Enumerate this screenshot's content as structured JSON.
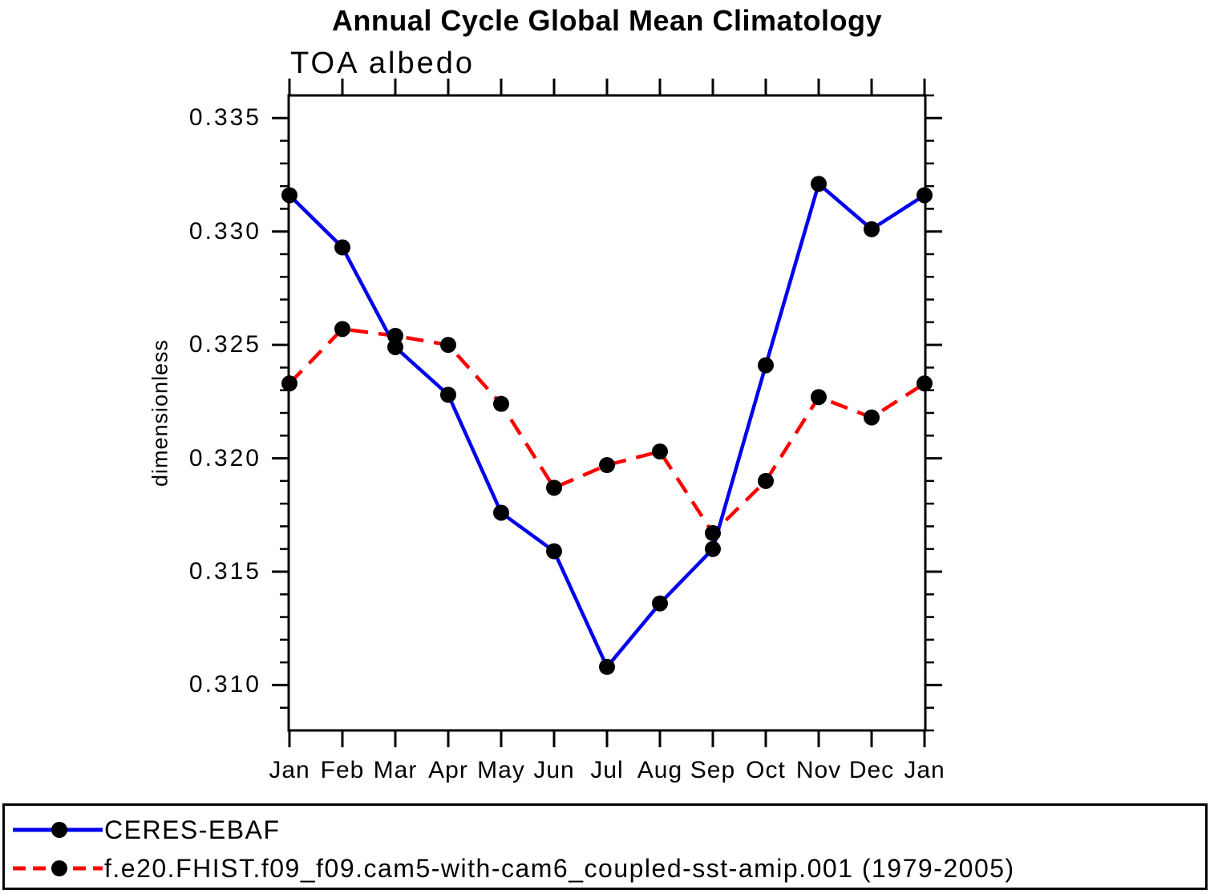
{
  "header": {
    "title": "Annual Cycle Global Mean Climatology",
    "subtitle": "TOA albedo"
  },
  "y_axis": {
    "label": "dimensionless",
    "tick_labels": [
      "0.310",
      "0.315",
      "0.320",
      "0.325",
      "0.330",
      "0.335"
    ]
  },
  "x_axis": {
    "tick_labels": [
      "Jan",
      "Feb",
      "Mar",
      "Apr",
      "May",
      "Jun",
      "Jul",
      "Aug",
      "Sep",
      "Oct",
      "Nov",
      "Dec",
      "Jan"
    ]
  },
  "legend": {
    "entries": [
      {
        "label": "CERES-EBAF",
        "color": "#0000ee",
        "line_style": "solid",
        "marker": "black-filled-circle"
      },
      {
        "label": "f.e20.FHIST.f09_f09.cam5-with-cam6_coupled-sst-amip.001 (1979-2005)",
        "color": "#ff0000",
        "line_style": "dashed",
        "marker": "black-filled-circle"
      }
    ]
  },
  "chart_data": {
    "type": "line",
    "title": "Annual Cycle Global Mean Climatology",
    "subtitle": "TOA albedo",
    "xlabel": "",
    "ylabel": "dimensionless",
    "categories": [
      "Jan",
      "Feb",
      "Mar",
      "Apr",
      "May",
      "Jun",
      "Jul",
      "Aug",
      "Sep",
      "Oct",
      "Nov",
      "Dec",
      "Jan"
    ],
    "series": [
      {
        "name": "CERES-EBAF",
        "color": "#0000ee",
        "line_style": "solid",
        "marker": "filled-circle",
        "marker_color": "#000000",
        "values": [
          0.3316,
          0.3293,
          0.3249,
          0.3228,
          0.3176,
          0.3159,
          0.3108,
          0.3136,
          0.316,
          0.3241,
          0.3321,
          0.3301,
          0.3316
        ]
      },
      {
        "name": "f.e20.FHIST.f09_f09.cam5-with-cam6_coupled-sst-amip.001 (1979-2005)",
        "color": "#ff0000",
        "line_style": "dashed",
        "marker": "filled-circle",
        "marker_color": "#000000",
        "values": [
          0.3233,
          0.3257,
          0.3254,
          0.325,
          0.3224,
          0.3187,
          0.3197,
          0.3203,
          0.3167,
          0.319,
          0.3227,
          0.3218,
          0.3233
        ]
      }
    ],
    "ylim": [
      0.308,
      0.336
    ],
    "yticks_major": [
      0.31,
      0.315,
      0.32,
      0.325,
      0.33,
      0.335
    ],
    "ytick_minor_step": 0.001,
    "grid": false,
    "legend_position": "bottom-outside-box"
  }
}
